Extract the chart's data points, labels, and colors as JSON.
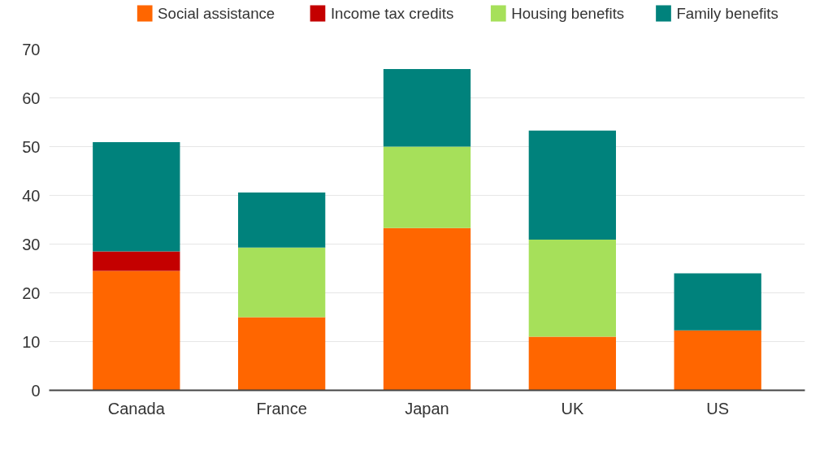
{
  "chart_data": {
    "type": "bar",
    "stacked": true,
    "categories": [
      "Canada",
      "France",
      "Japan",
      "UK",
      "US"
    ],
    "series": [
      {
        "name": "Social assistance",
        "color": "#ff6600",
        "values": [
          24.5,
          15,
          33.3,
          11,
          12.3
        ]
      },
      {
        "name": "Income tax credits",
        "color": "#c40000",
        "values": [
          4,
          0,
          0,
          0,
          0
        ]
      },
      {
        "name": "Housing benefits",
        "color": "#a6e05a",
        "values": [
          0,
          14.3,
          16.7,
          19.9,
          0
        ]
      },
      {
        "name": "Family benefits",
        "color": "#00827c",
        "values": [
          22.4,
          11.3,
          15.9,
          22.4,
          11.7
        ]
      }
    ],
    "ylim": [
      0,
      70
    ],
    "yticks": [
      0,
      10,
      20,
      30,
      40,
      50,
      60,
      70
    ],
    "grid": "y",
    "legend": "top"
  }
}
